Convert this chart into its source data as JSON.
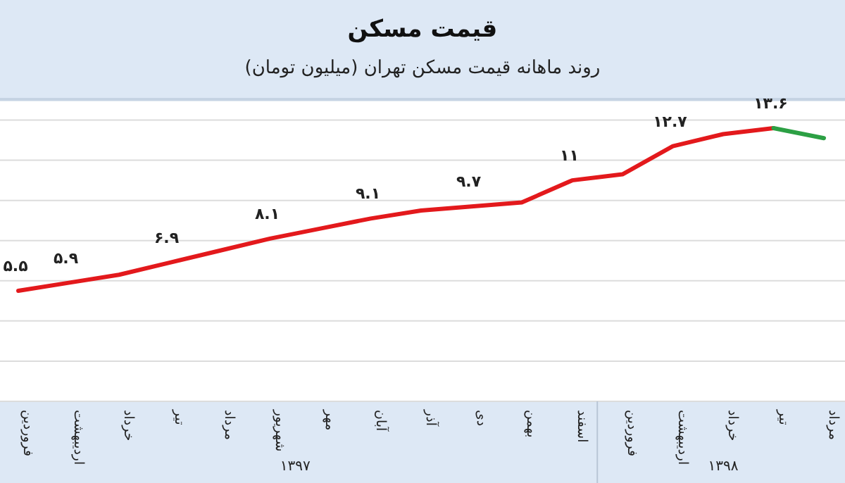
{
  "chart_data": {
    "type": "line",
    "title": "قیمت مسکن",
    "subtitle": "روند ماهانه قیمت مسکن تهران (میلیون تومان)",
    "categories": [
      "فروردین",
      "اردیبهشت",
      "خرداد",
      "تیر",
      "مرداد",
      "شهریور",
      "مهر",
      "آبان",
      "آذر",
      "دی",
      "بهمن",
      "اسفند",
      "فروردین",
      "اردیبهشت",
      "خرداد",
      "تیر",
      "مرداد"
    ],
    "series": [
      {
        "color": "#e3191c",
        "values": [
          5.5,
          5.9,
          6.3,
          6.9,
          7.5,
          8.1,
          8.6,
          9.1,
          9.5,
          9.7,
          9.9,
          11,
          11.3,
          12.7,
          13.3,
          13.6,
          null
        ],
        "value_labels": [
          "۵.۵",
          "۵.۹",
          null,
          "۶.۹",
          null,
          "۸.۱",
          null,
          "۹.۱",
          null,
          "۹.۷",
          null,
          "۱۱",
          null,
          "۱۲.۷",
          null,
          "۱۳.۶",
          null
        ]
      },
      {
        "color": "#2ca044",
        "values": [
          null,
          null,
          null,
          null,
          null,
          null,
          null,
          null,
          null,
          null,
          null,
          null,
          null,
          null,
          null,
          13.6,
          13.1
        ]
      }
    ],
    "ylim": [
      0,
      15
    ],
    "yticks": [
      {
        "value": 0,
        "label": null
      },
      {
        "value": 2,
        "label": null
      },
      {
        "value": 4,
        "label": null
      },
      {
        "value": 6,
        "label": null
      },
      {
        "value": 8,
        "label": null
      },
      {
        "value": 10,
        "label": null
      },
      {
        "value": 12,
        "label": null
      },
      {
        "value": 14,
        "label": null
      }
    ],
    "grid": "y",
    "tick_labels": "x",
    "annotations": [
      "۱۳۹۷",
      "۱۳۹۸"
    ]
  }
}
